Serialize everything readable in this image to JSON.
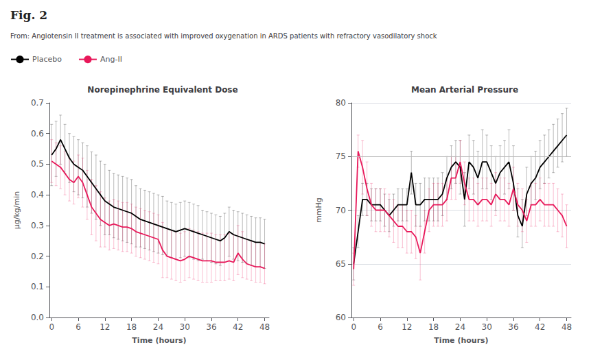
{
  "title": "Fig. 2",
  "subtitle": "From: Angiotensin II treatment is associated with improved oxygenation in ARDS patients with refractory vasodilatory shock",
  "legend": "upper left",
  "chart_data": [
    {
      "type": "line",
      "title": "Norepinephrine Equivalent Dose",
      "xlabel": "Time (hours)",
      "ylabel": "μg/kg/min",
      "x": [
        0,
        1,
        2,
        3,
        4,
        5,
        6,
        7,
        8,
        9,
        10,
        11,
        12,
        13,
        14,
        15,
        16,
        17,
        18,
        19,
        20,
        21,
        22,
        23,
        24,
        25,
        26,
        27,
        28,
        29,
        30,
        31,
        32,
        33,
        34,
        35,
        36,
        37,
        38,
        39,
        40,
        41,
        42,
        43,
        44,
        45,
        46,
        47,
        48
      ],
      "xlim": [
        -0.5,
        49
      ],
      "xticks": [
        0,
        6,
        12,
        18,
        24,
        30,
        36,
        42,
        48
      ],
      "ylim": [
        0.0,
        0.7
      ],
      "yticks": [
        {
          "value": 0.0,
          "label": "0.0"
        },
        0.1,
        0.2,
        0.3,
        0.4,
        0.5,
        0.6,
        0.7
      ],
      "grid": false,
      "series": [
        {
          "name": "Placebo",
          "color": "#000000",
          "values": [
            0.53,
            0.55,
            0.58,
            0.55,
            0.52,
            0.5,
            0.49,
            0.48,
            0.46,
            0.44,
            0.42,
            0.4,
            0.38,
            0.37,
            0.36,
            0.355,
            0.35,
            0.345,
            0.34,
            0.33,
            0.32,
            0.315,
            0.31,
            0.305,
            0.3,
            0.295,
            0.29,
            0.285,
            0.28,
            0.285,
            0.29,
            0.285,
            0.28,
            0.275,
            0.27,
            0.265,
            0.26,
            0.255,
            0.25,
            0.26,
            0.28,
            0.27,
            0.265,
            0.26,
            0.255,
            0.25,
            0.245,
            0.245,
            0.24
          ],
          "err_upper": [
            0.1,
            0.09,
            0.08,
            0.08,
            0.08,
            0.09,
            0.09,
            0.09,
            0.1,
            0.1,
            0.11,
            0.11,
            0.12,
            0.11,
            0.11,
            0.11,
            0.11,
            0.11,
            0.11,
            0.1,
            0.1,
            0.1,
            0.1,
            0.1,
            0.1,
            0.1,
            0.09,
            0.09,
            0.09,
            0.09,
            0.09,
            0.09,
            0.09,
            0.09,
            0.08,
            0.08,
            0.08,
            0.08,
            0.08,
            0.08,
            0.08,
            0.08,
            0.08,
            0.08,
            0.08,
            0.08,
            0.08,
            0.08,
            0.08
          ],
          "err_lower": [
            0.1,
            0.09,
            0.08,
            0.08,
            0.08,
            0.09,
            0.09,
            0.09,
            0.1,
            0.1,
            0.1,
            0.1,
            0.11,
            0.1,
            0.1,
            0.1,
            0.1,
            0.1,
            0.1,
            0.1,
            0.09,
            0.09,
            0.09,
            0.09,
            0.09,
            0.09,
            0.09,
            0.09,
            0.09,
            0.09,
            0.09,
            0.09,
            0.09,
            0.09,
            0.08,
            0.08,
            0.08,
            0.08,
            0.08,
            0.08,
            0.08,
            0.08,
            0.08,
            0.08,
            0.08,
            0.08,
            0.08,
            0.08,
            0.08
          ]
        },
        {
          "name": "Ang-II",
          "color": "#E8185A",
          "values": [
            0.51,
            0.5,
            0.49,
            0.47,
            0.45,
            0.44,
            0.46,
            0.44,
            0.4,
            0.36,
            0.34,
            0.32,
            0.31,
            0.3,
            0.305,
            0.3,
            0.295,
            0.295,
            0.29,
            0.28,
            0.275,
            0.27,
            0.265,
            0.26,
            0.255,
            0.22,
            0.2,
            0.195,
            0.19,
            0.185,
            0.19,
            0.2,
            0.195,
            0.19,
            0.185,
            0.185,
            0.185,
            0.18,
            0.18,
            0.18,
            0.185,
            0.18,
            0.21,
            0.19,
            0.175,
            0.17,
            0.165,
            0.165,
            0.16
          ],
          "err_upper": [
            0.07,
            0.07,
            0.07,
            0.07,
            0.07,
            0.07,
            0.07,
            0.08,
            0.08,
            0.09,
            0.09,
            0.09,
            0.08,
            0.08,
            0.08,
            0.08,
            0.08,
            0.08,
            0.08,
            0.08,
            0.08,
            0.08,
            0.08,
            0.08,
            0.08,
            0.09,
            0.09,
            0.09,
            0.09,
            0.09,
            0.09,
            0.09,
            0.09,
            0.09,
            0.09,
            0.09,
            0.09,
            0.09,
            0.09,
            0.09,
            0.09,
            0.09,
            0.09,
            0.09,
            0.08,
            0.08,
            0.08,
            0.08,
            0.08
          ],
          "err_lower": [
            0.07,
            0.07,
            0.07,
            0.07,
            0.07,
            0.07,
            0.07,
            0.08,
            0.08,
            0.09,
            0.09,
            0.09,
            0.08,
            0.08,
            0.08,
            0.08,
            0.08,
            0.08,
            0.08,
            0.08,
            0.08,
            0.08,
            0.08,
            0.08,
            0.08,
            0.09,
            0.07,
            0.07,
            0.07,
            0.07,
            0.07,
            0.07,
            0.07,
            0.07,
            0.07,
            0.07,
            0.07,
            0.06,
            0.06,
            0.06,
            0.06,
            0.06,
            0.07,
            0.06,
            0.05,
            0.05,
            0.05,
            0.05,
            0.05
          ]
        }
      ]
    },
    {
      "type": "line",
      "title": "Mean Arterial Pressure",
      "xlabel": "Time (hours)",
      "ylabel": "mmHg",
      "x": [
        0,
        1,
        2,
        3,
        4,
        5,
        6,
        7,
        8,
        9,
        10,
        11,
        12,
        13,
        14,
        15,
        16,
        17,
        18,
        19,
        20,
        21,
        22,
        23,
        24,
        25,
        26,
        27,
        28,
        29,
        30,
        31,
        32,
        33,
        34,
        35,
        36,
        37,
        38,
        39,
        40,
        41,
        42,
        43,
        44,
        45,
        46,
        47,
        48
      ],
      "xlim": [
        -0.5,
        49
      ],
      "xticks": [
        0,
        6,
        12,
        18,
        24,
        30,
        36,
        42,
        48
      ],
      "ylim": [
        60,
        80
      ],
      "yticks": [
        60,
        65,
        70,
        75,
        80
      ],
      "grid": true,
      "reference_line": 75,
      "series": [
        {
          "name": "Placebo",
          "color": "#000000",
          "values": [
            65.0,
            68.0,
            71.0,
            71.0,
            70.5,
            70.5,
            70.5,
            70.0,
            69.5,
            70.0,
            70.5,
            70.5,
            70.5,
            73.5,
            70.5,
            70.5,
            71.0,
            71.0,
            71.0,
            71.0,
            71.5,
            73.0,
            74.0,
            74.5,
            74.0,
            71.0,
            74.5,
            74.0,
            73.0,
            74.5,
            74.5,
            73.5,
            72.5,
            73.5,
            74.0,
            74.5,
            72.5,
            69.5,
            68.5,
            71.5,
            72.5,
            73.0,
            74.0,
            74.5,
            75.0,
            75.5,
            76.0,
            76.5,
            77.0
          ],
          "err_upper": [
            1.5,
            1.5,
            1.5,
            1.5,
            1.5,
            1.5,
            1.5,
            1.5,
            1.5,
            1.5,
            1.5,
            1.5,
            1.5,
            2.0,
            2.0,
            2.0,
            2.0,
            2.0,
            2.0,
            2.0,
            2.0,
            2.0,
            2.0,
            2.0,
            2.5,
            2.5,
            2.5,
            2.5,
            2.5,
            3.0,
            2.5,
            2.5,
            2.5,
            2.5,
            2.5,
            3.0,
            3.5,
            2.5,
            2.5,
            2.5,
            2.5,
            2.5,
            2.5,
            2.5,
            2.5,
            2.5,
            2.5,
            2.5,
            2.5
          ],
          "err_lower": [
            1.5,
            1.5,
            1.5,
            1.5,
            1.5,
            1.5,
            1.5,
            1.5,
            1.5,
            1.5,
            1.5,
            1.5,
            1.5,
            2.0,
            2.0,
            2.0,
            2.0,
            2.0,
            2.0,
            2.0,
            2.0,
            2.0,
            2.0,
            2.0,
            2.5,
            2.5,
            2.5,
            2.5,
            2.5,
            2.5,
            2.5,
            2.5,
            2.5,
            2.5,
            2.5,
            2.5,
            2.5,
            2.0,
            2.0,
            2.0,
            2.0,
            2.0,
            2.0,
            2.0,
            2.0,
            2.0,
            2.0,
            2.0,
            2.0
          ]
        },
        {
          "name": "Ang-II",
          "color": "#E8185A",
          "values": [
            64.5,
            75.5,
            74.0,
            72.0,
            70.5,
            70.0,
            70.0,
            70.0,
            69.5,
            69.0,
            68.5,
            68.5,
            68.0,
            68.0,
            67.5,
            66.0,
            68.0,
            70.0,
            70.5,
            70.5,
            70.5,
            71.0,
            73.0,
            73.0,
            74.5,
            72.5,
            71.0,
            71.0,
            70.5,
            71.0,
            71.0,
            70.5,
            71.5,
            71.0,
            71.0,
            70.5,
            72.0,
            70.5,
            70.0,
            69.0,
            70.5,
            70.5,
            71.0,
            70.5,
            70.5,
            70.5,
            70.0,
            69.5,
            68.5
          ],
          "err_upper": [
            1.5,
            1.5,
            2.5,
            2.5,
            2.0,
            2.0,
            2.0,
            2.0,
            2.0,
            2.0,
            2.0,
            2.0,
            2.0,
            2.0,
            2.0,
            2.5,
            2.0,
            2.0,
            2.0,
            2.0,
            2.0,
            2.0,
            2.0,
            2.0,
            2.0,
            2.0,
            2.0,
            2.0,
            2.0,
            2.0,
            2.0,
            2.0,
            2.0,
            2.0,
            2.0,
            2.0,
            2.0,
            2.0,
            2.0,
            2.0,
            2.0,
            2.0,
            2.0,
            2.0,
            2.0,
            2.0,
            2.0,
            2.0,
            2.0
          ],
          "err_lower": [
            1.5,
            1.5,
            2.5,
            2.5,
            2.0,
            2.0,
            2.0,
            2.0,
            2.0,
            2.0,
            2.0,
            2.0,
            2.0,
            2.0,
            2.0,
            2.5,
            2.0,
            2.0,
            2.0,
            2.0,
            2.0,
            2.0,
            2.0,
            2.0,
            2.0,
            2.0,
            2.0,
            2.0,
            2.0,
            2.0,
            2.0,
            2.0,
            2.0,
            2.0,
            2.0,
            2.0,
            2.0,
            2.0,
            2.0,
            2.0,
            2.0,
            2.0,
            2.0,
            2.0,
            2.0,
            2.0,
            2.0,
            2.0,
            2.0
          ]
        }
      ]
    }
  ]
}
